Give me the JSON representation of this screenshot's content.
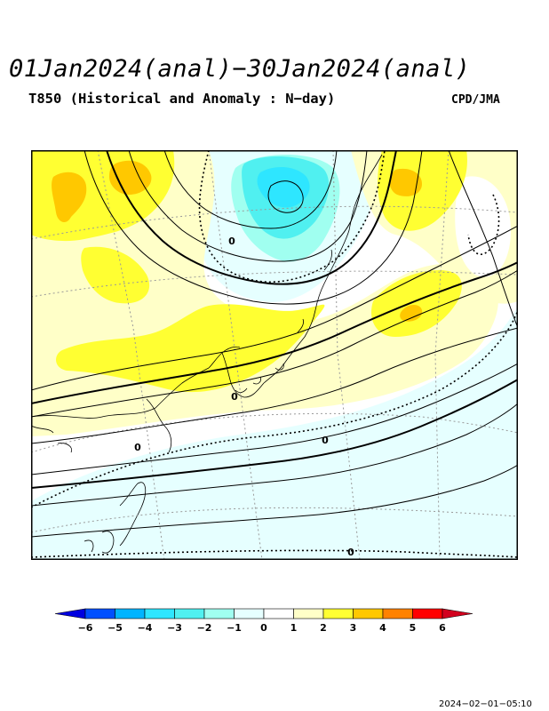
{
  "header": {
    "title": "01Jan2024(anal)−30Jan2024(anal)",
    "subtitle": "T850 (Historical and Anomaly : N−day)",
    "credit": "CPD/JMA"
  },
  "map": {
    "contour_labels": [
      {
        "text": "0"
      },
      {
        "text": "0"
      },
      {
        "text": "0"
      },
      {
        "text": "0"
      },
      {
        "text": "0"
      }
    ]
  },
  "legend": {
    "ticks": [
      "−6",
      "−5",
      "−4",
      "−3",
      "−2",
      "−1",
      "0",
      "1",
      "2",
      "3",
      "4",
      "5",
      "6"
    ],
    "colors": {
      "below_min": "#0000e0",
      "bins": [
        "#0050ff",
        "#00b4ff",
        "#2ee6ff",
        "#50f0f0",
        "#a0fff0",
        "#e6ffff",
        "#ffffff",
        "#ffffc8",
        "#ffff32",
        "#ffc800",
        "#ff8200",
        "#ff0000"
      ],
      "above_max": "#d2001e"
    }
  },
  "footer": {
    "timestamp": "2024−02−01−05:10"
  }
}
